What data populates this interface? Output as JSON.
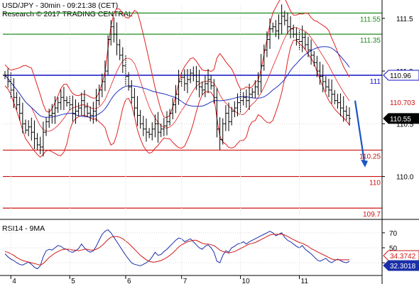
{
  "header": {
    "line1": "USD/JPY - 30min - 09:21:38 (CET)",
    "line2": "Research © 2017 TRADING CENTRAL"
  },
  "rsi_label": "RSI14 - 9MA",
  "colors": {
    "candles": "#000000",
    "bollinger": "#e02020",
    "ma": "#2030c0",
    "resistance": "#1e8c1e",
    "pivot": "#1010c8",
    "support": "#cc1010",
    "arrow": "#1a56c4",
    "rsi": "#1a2fa8",
    "rsi_ma": "#d01818",
    "grid": "#d9d9d9",
    "axis": "#000000"
  },
  "chart_data": [
    {
      "type": "candlestick",
      "title": "USD/JPY - 30min - 09:21:38 (CET)",
      "ylim": [
        109.62,
        111.62
      ],
      "y_ticks": [
        {
          "value": 111.5,
          "label": "111.5"
        },
        {
          "value": 111.0,
          "label": "111.0"
        },
        {
          "value": 110.5,
          "label": "110.5"
        },
        {
          "value": 110.0,
          "label": "110.0"
        }
      ],
      "x_ticks": [
        "4",
        "5",
        "6",
        "7",
        "10",
        "11"
      ],
      "levels": [
        {
          "value": 111.55,
          "label": "111.55",
          "kind": "resistance"
        },
        {
          "value": 111.35,
          "label": "111.35",
          "kind": "resistance"
        },
        {
          "value": 110.96,
          "label": "111",
          "kind": "pivot"
        },
        {
          "value": 110.25,
          "label": "110.25",
          "kind": "support"
        },
        {
          "value": 110.0,
          "label": "110",
          "kind": "support"
        },
        {
          "value": 109.7,
          "label": "109.7",
          "kind": "support"
        }
      ],
      "price_tags": [
        {
          "value": 110.96,
          "label": "110.96",
          "style": "pivot"
        },
        {
          "value": 110.703,
          "label": "110.703",
          "style": "red"
        },
        {
          "value": 110.55,
          "label": "110.55",
          "style": "black"
        }
      ],
      "close_series": [
        110.96,
        110.9,
        110.82,
        110.75,
        110.68,
        110.6,
        110.5,
        110.44,
        110.47,
        110.42,
        110.36,
        110.3,
        110.28,
        110.42,
        110.52,
        110.58,
        110.6,
        110.65,
        110.7,
        110.75,
        110.72,
        110.7,
        110.68,
        110.6,
        110.62,
        110.65,
        110.72,
        110.66,
        110.6,
        110.58,
        110.62,
        110.72,
        110.82,
        110.9,
        111.0,
        111.3,
        111.42,
        111.35,
        111.25,
        111.15,
        111.05,
        110.95,
        110.85,
        110.75,
        110.65,
        110.58,
        110.5,
        110.45,
        110.42,
        110.4,
        110.45,
        110.5,
        110.42,
        110.45,
        110.48,
        110.52,
        110.6,
        110.68,
        110.78,
        110.9,
        110.94,
        110.88,
        110.92,
        110.98,
        110.96,
        110.9,
        110.85,
        110.82,
        110.88,
        110.92,
        110.86,
        110.75,
        110.45,
        110.35,
        110.5,
        110.6,
        110.52,
        110.62,
        110.65,
        110.7,
        110.72,
        110.75,
        110.72,
        110.78,
        110.8,
        110.85,
        110.9,
        111.05,
        111.2,
        111.3,
        111.4,
        111.42,
        111.38,
        111.45,
        111.52,
        111.48,
        111.42,
        111.4,
        111.35,
        111.3,
        111.28,
        111.32,
        111.25,
        111.2,
        111.15,
        111.08,
        111.0,
        110.95,
        110.9,
        110.85,
        110.82,
        110.78,
        110.72,
        110.7,
        110.65,
        110.62,
        110.58,
        110.55
      ],
      "arrow": {
        "from_value": 110.72,
        "to_value": 110.1,
        "direction": "down"
      }
    },
    {
      "type": "line",
      "title": "RSI14 - 9MA",
      "ylim": [
        15,
        85
      ],
      "y_ticks": [
        {
          "value": 70,
          "label": "70"
        },
        {
          "value": 50,
          "label": "50"
        },
        {
          "value": 30,
          "label": "30"
        }
      ],
      "series": [
        {
          "name": "RSI14",
          "last_label": "32.3018",
          "values": [
            42,
            38,
            35,
            33,
            30,
            28,
            27,
            29,
            31,
            28,
            24,
            22,
            26,
            38,
            46,
            48,
            47,
            50,
            53,
            52,
            49,
            48,
            45,
            44,
            46,
            49,
            55,
            50,
            46,
            44,
            46,
            52,
            60,
            68,
            72,
            74,
            70,
            64,
            58,
            52,
            46,
            40,
            35,
            30,
            28,
            27,
            26,
            28,
            30,
            33,
            38,
            44,
            40,
            41,
            45,
            48,
            52,
            56,
            60,
            63,
            62,
            58,
            60,
            62,
            58,
            54,
            50,
            48,
            52,
            54,
            50,
            44,
            32,
            30,
            40,
            46,
            44,
            50,
            52,
            55,
            56,
            58,
            55,
            58,
            60,
            62,
            64,
            66,
            68,
            70,
            72,
            70,
            66,
            68,
            70,
            64,
            60,
            58,
            55,
            52,
            50,
            53,
            48,
            45,
            42,
            38,
            34,
            32,
            34,
            36,
            32,
            30,
            33,
            35,
            33,
            31,
            30,
            32
          ]
        },
        {
          "name": "9MA",
          "last_label": "34.3742",
          "values": [
            45,
            44,
            42,
            40,
            37,
            35,
            33,
            32,
            31,
            30,
            29,
            28,
            27,
            29,
            33,
            37,
            40,
            43,
            45,
            47,
            48,
            48,
            48,
            47,
            47,
            46,
            47,
            48,
            48,
            47,
            47,
            48,
            50,
            53,
            57,
            61,
            64,
            65,
            65,
            64,
            62,
            59,
            56,
            52,
            48,
            44,
            40,
            37,
            34,
            32,
            31,
            31,
            32,
            33,
            35,
            37,
            40,
            43,
            47,
            51,
            54,
            56,
            58,
            59,
            60,
            60,
            58,
            56,
            55,
            55,
            54,
            53,
            50,
            47,
            45,
            44,
            43,
            44,
            45,
            47,
            49,
            51,
            53,
            55,
            56,
            57,
            59,
            61,
            63,
            65,
            67,
            68,
            68,
            68,
            68,
            67,
            65,
            63,
            61,
            59,
            57,
            56,
            54,
            52,
            49,
            47,
            45,
            43,
            41,
            39,
            37,
            35,
            34,
            34,
            34,
            34,
            34,
            34
          ]
        }
      ]
    }
  ]
}
